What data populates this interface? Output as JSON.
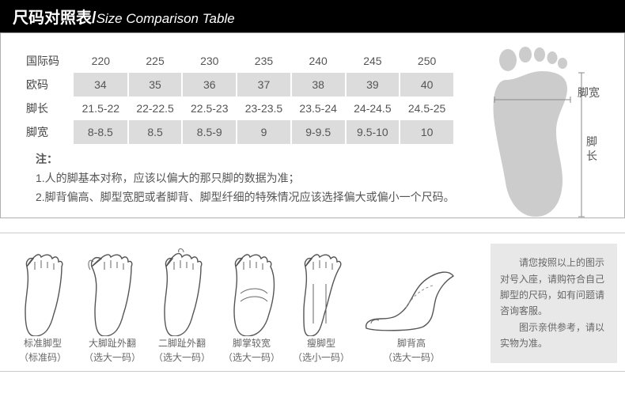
{
  "header": {
    "main": "尺码对照表/",
    "sub": "Size Comparison Table"
  },
  "table": {
    "rows": [
      {
        "label": "国际码",
        "shaded": false,
        "cells": [
          "220",
          "225",
          "230",
          "235",
          "240",
          "245",
          "250"
        ]
      },
      {
        "label": "欧码",
        "shaded": true,
        "cells": [
          "34",
          "35",
          "36",
          "37",
          "38",
          "39",
          "40"
        ]
      },
      {
        "label": "脚长",
        "shaded": false,
        "cells": [
          "21.5-22",
          "22-22.5",
          "22.5-23",
          "23-23.5",
          "23.5-24",
          "24-24.5",
          "24.5-25"
        ]
      },
      {
        "label": "脚宽",
        "shaded": true,
        "cells": [
          "8-8.5",
          "8.5",
          "8.5-9",
          "9",
          "9-9.5",
          "9.5-10",
          "10"
        ]
      }
    ]
  },
  "note": {
    "label": "注：",
    "line1": "1.人的脚基本对称，应该以偏大的那只脚的数据为准；",
    "line2": "2.脚背偏高、脚型宽肥或者脚背、脚型纤细的特殊情况应该选择偏大或偏小一个尺码。"
  },
  "diagram": {
    "width_label": "脚宽",
    "length_label": "脚长"
  },
  "feet": [
    {
      "title": "标准脚型",
      "sub": "（标准码）"
    },
    {
      "title": "大脚趾外翻",
      "sub": "（选大一码）"
    },
    {
      "title": "二脚趾外翻",
      "sub": "（选大一码）"
    },
    {
      "title": "脚掌较宽",
      "sub": "（选大一码）"
    },
    {
      "title": "瘦脚型",
      "sub": "（选小一码）"
    },
    {
      "title": "脚背高",
      "sub": "（选大一码）"
    }
  ],
  "infobox": {
    "p1": "请您按照以上的图示对号入座，请购符合自己脚型的尺码，如有问题请咨询客服。",
    "p2": "图示亲供参考，请以实物为准。"
  },
  "colors": {
    "header_bg": "#000000",
    "header_fg": "#ffffff",
    "shade": "#dcdcdc",
    "border": "#b0b0b0",
    "text": "#555555",
    "info_bg": "#e8e8e8",
    "line": "#888888"
  }
}
